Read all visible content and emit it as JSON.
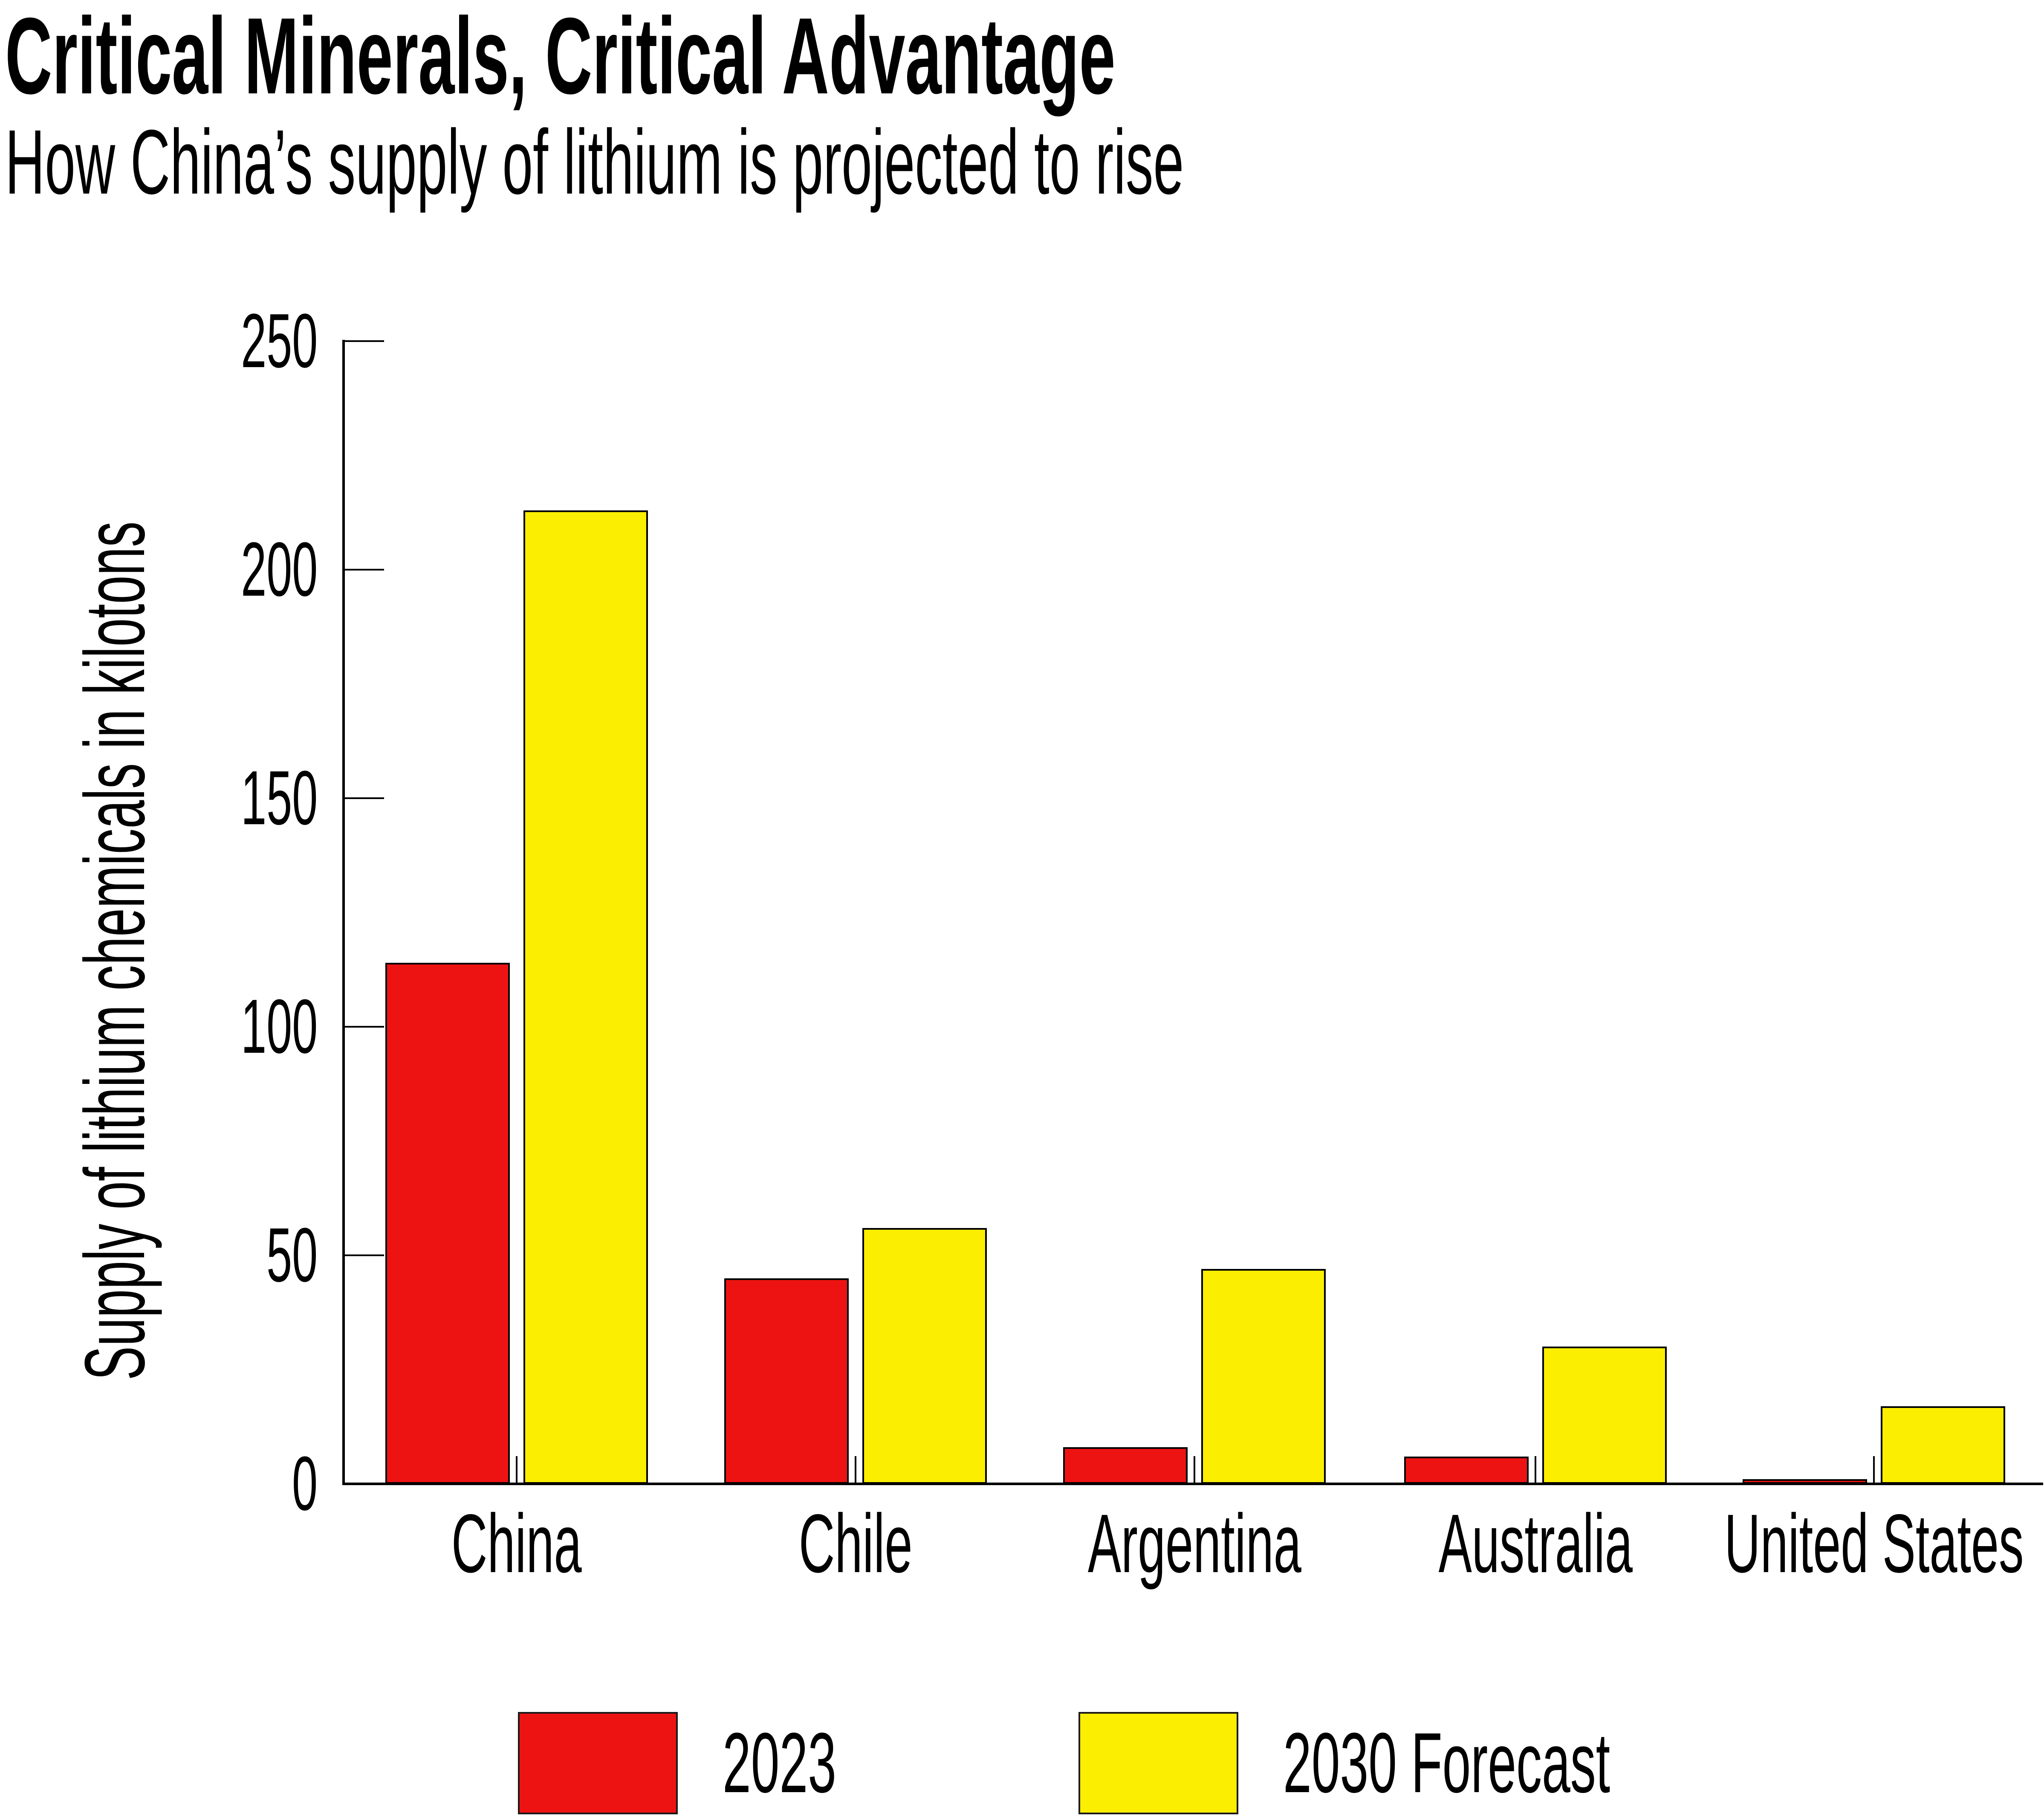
{
  "header": {
    "title": "Critical Minerals, Critical Advantage",
    "subtitle": "How China’s supply of lithium is projected to rise"
  },
  "chart_data": {
    "type": "bar",
    "title": "Critical Minerals, Critical Advantage",
    "subtitle": "How China’s supply of lithium is projected to rise",
    "categories": [
      "China",
      "Chile",
      "Argentina",
      "Australia",
      "United States"
    ],
    "series": [
      {
        "name": "2023",
        "color": "#EE1313",
        "values": [
          114,
          45,
          8,
          6,
          1
        ]
      },
      {
        "name": "2030 Forecast",
        "color": "#FCEE00",
        "values": [
          213,
          56,
          47,
          30,
          17
        ]
      }
    ],
    "xlabel": "",
    "ylabel": "Supply of lithium chemicals in kilotons",
    "ylim": [
      0,
      250
    ],
    "yticks": [
      0,
      50,
      100,
      150,
      200,
      250
    ],
    "grid": false,
    "legend_position": "bottom",
    "axis_color": "#000000",
    "background_color": "#ffffff"
  }
}
